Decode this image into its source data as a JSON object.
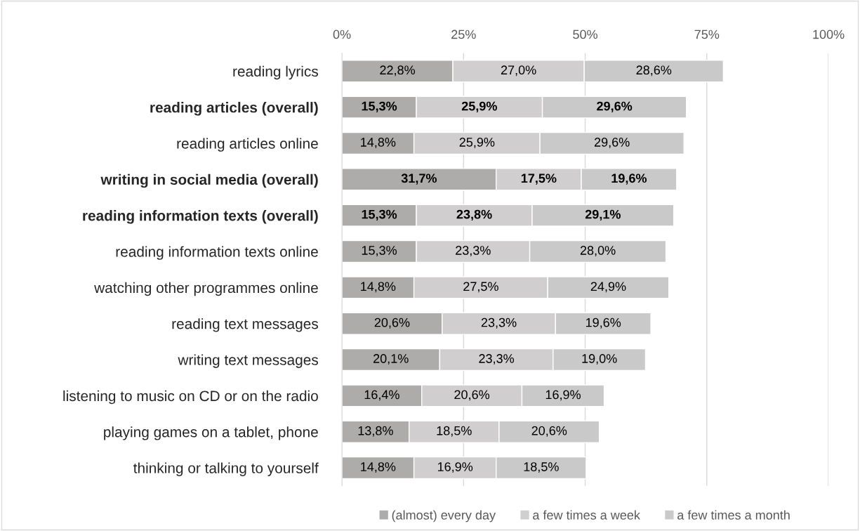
{
  "chart_data": {
    "type": "bar",
    "orientation": "horizontal",
    "stacked": true,
    "categories": [
      "reading lyrics",
      "reading articles (overall)",
      "reading articles online",
      "writing in social media (overall)",
      "reading information texts (overall)",
      "reading information texts online",
      "watching other programmes online",
      "reading text messages",
      "writing text messages",
      "listening to music on CD or on the radio",
      "playing games on a tablet, phone",
      "thinking or talking to yourself"
    ],
    "series": [
      {
        "name": "(almost) every day",
        "color": "#aeabab",
        "values": [
          22.8,
          15.3,
          14.8,
          31.7,
          15.3,
          15.3,
          14.8,
          20.6,
          20.1,
          16.4,
          13.8,
          14.8
        ],
        "value_labels": [
          "22,8%",
          "15,3%",
          "14,8%",
          "31,7%",
          "15,3%",
          "15,3%",
          "14,8%",
          "20,6%",
          "20,1%",
          "16,4%",
          "13,8%",
          "14,8%"
        ]
      },
      {
        "name": "a few times a week",
        "color": "#d0cece",
        "values": [
          27.0,
          25.9,
          25.9,
          17.5,
          23.8,
          23.3,
          27.5,
          23.3,
          23.3,
          20.6,
          18.5,
          16.9
        ],
        "value_labels": [
          "27,0%",
          "25,9%",
          "25,9%",
          "17,5%",
          "23,8%",
          "23,3%",
          "27,5%",
          "23,3%",
          "23,3%",
          "20,6%",
          "18,5%",
          "16,9%"
        ]
      },
      {
        "name": "a few times a month",
        "color": "#c9c9c9",
        "values": [
          28.6,
          29.6,
          29.6,
          19.6,
          29.1,
          28.0,
          24.9,
          19.6,
          19.0,
          16.9,
          20.6,
          18.5
        ],
        "value_labels": [
          "28,6%",
          "29,6%",
          "29,6%",
          "19,6%",
          "29,1%",
          "28,0%",
          "24,9%",
          "19,6%",
          "19,0%",
          "16,9%",
          "20,6%",
          "18,5%"
        ]
      }
    ],
    "xlim": [
      0,
      100
    ],
    "xticks": [
      {
        "value": 0,
        "label": "0%"
      },
      {
        "value": 25,
        "label": "25%"
      },
      {
        "value": 50,
        "label": "50%"
      },
      {
        "value": 75,
        "label": "75%"
      },
      {
        "value": 100,
        "label": "100%"
      }
    ],
    "grid": "x",
    "legend": "bottom"
  }
}
